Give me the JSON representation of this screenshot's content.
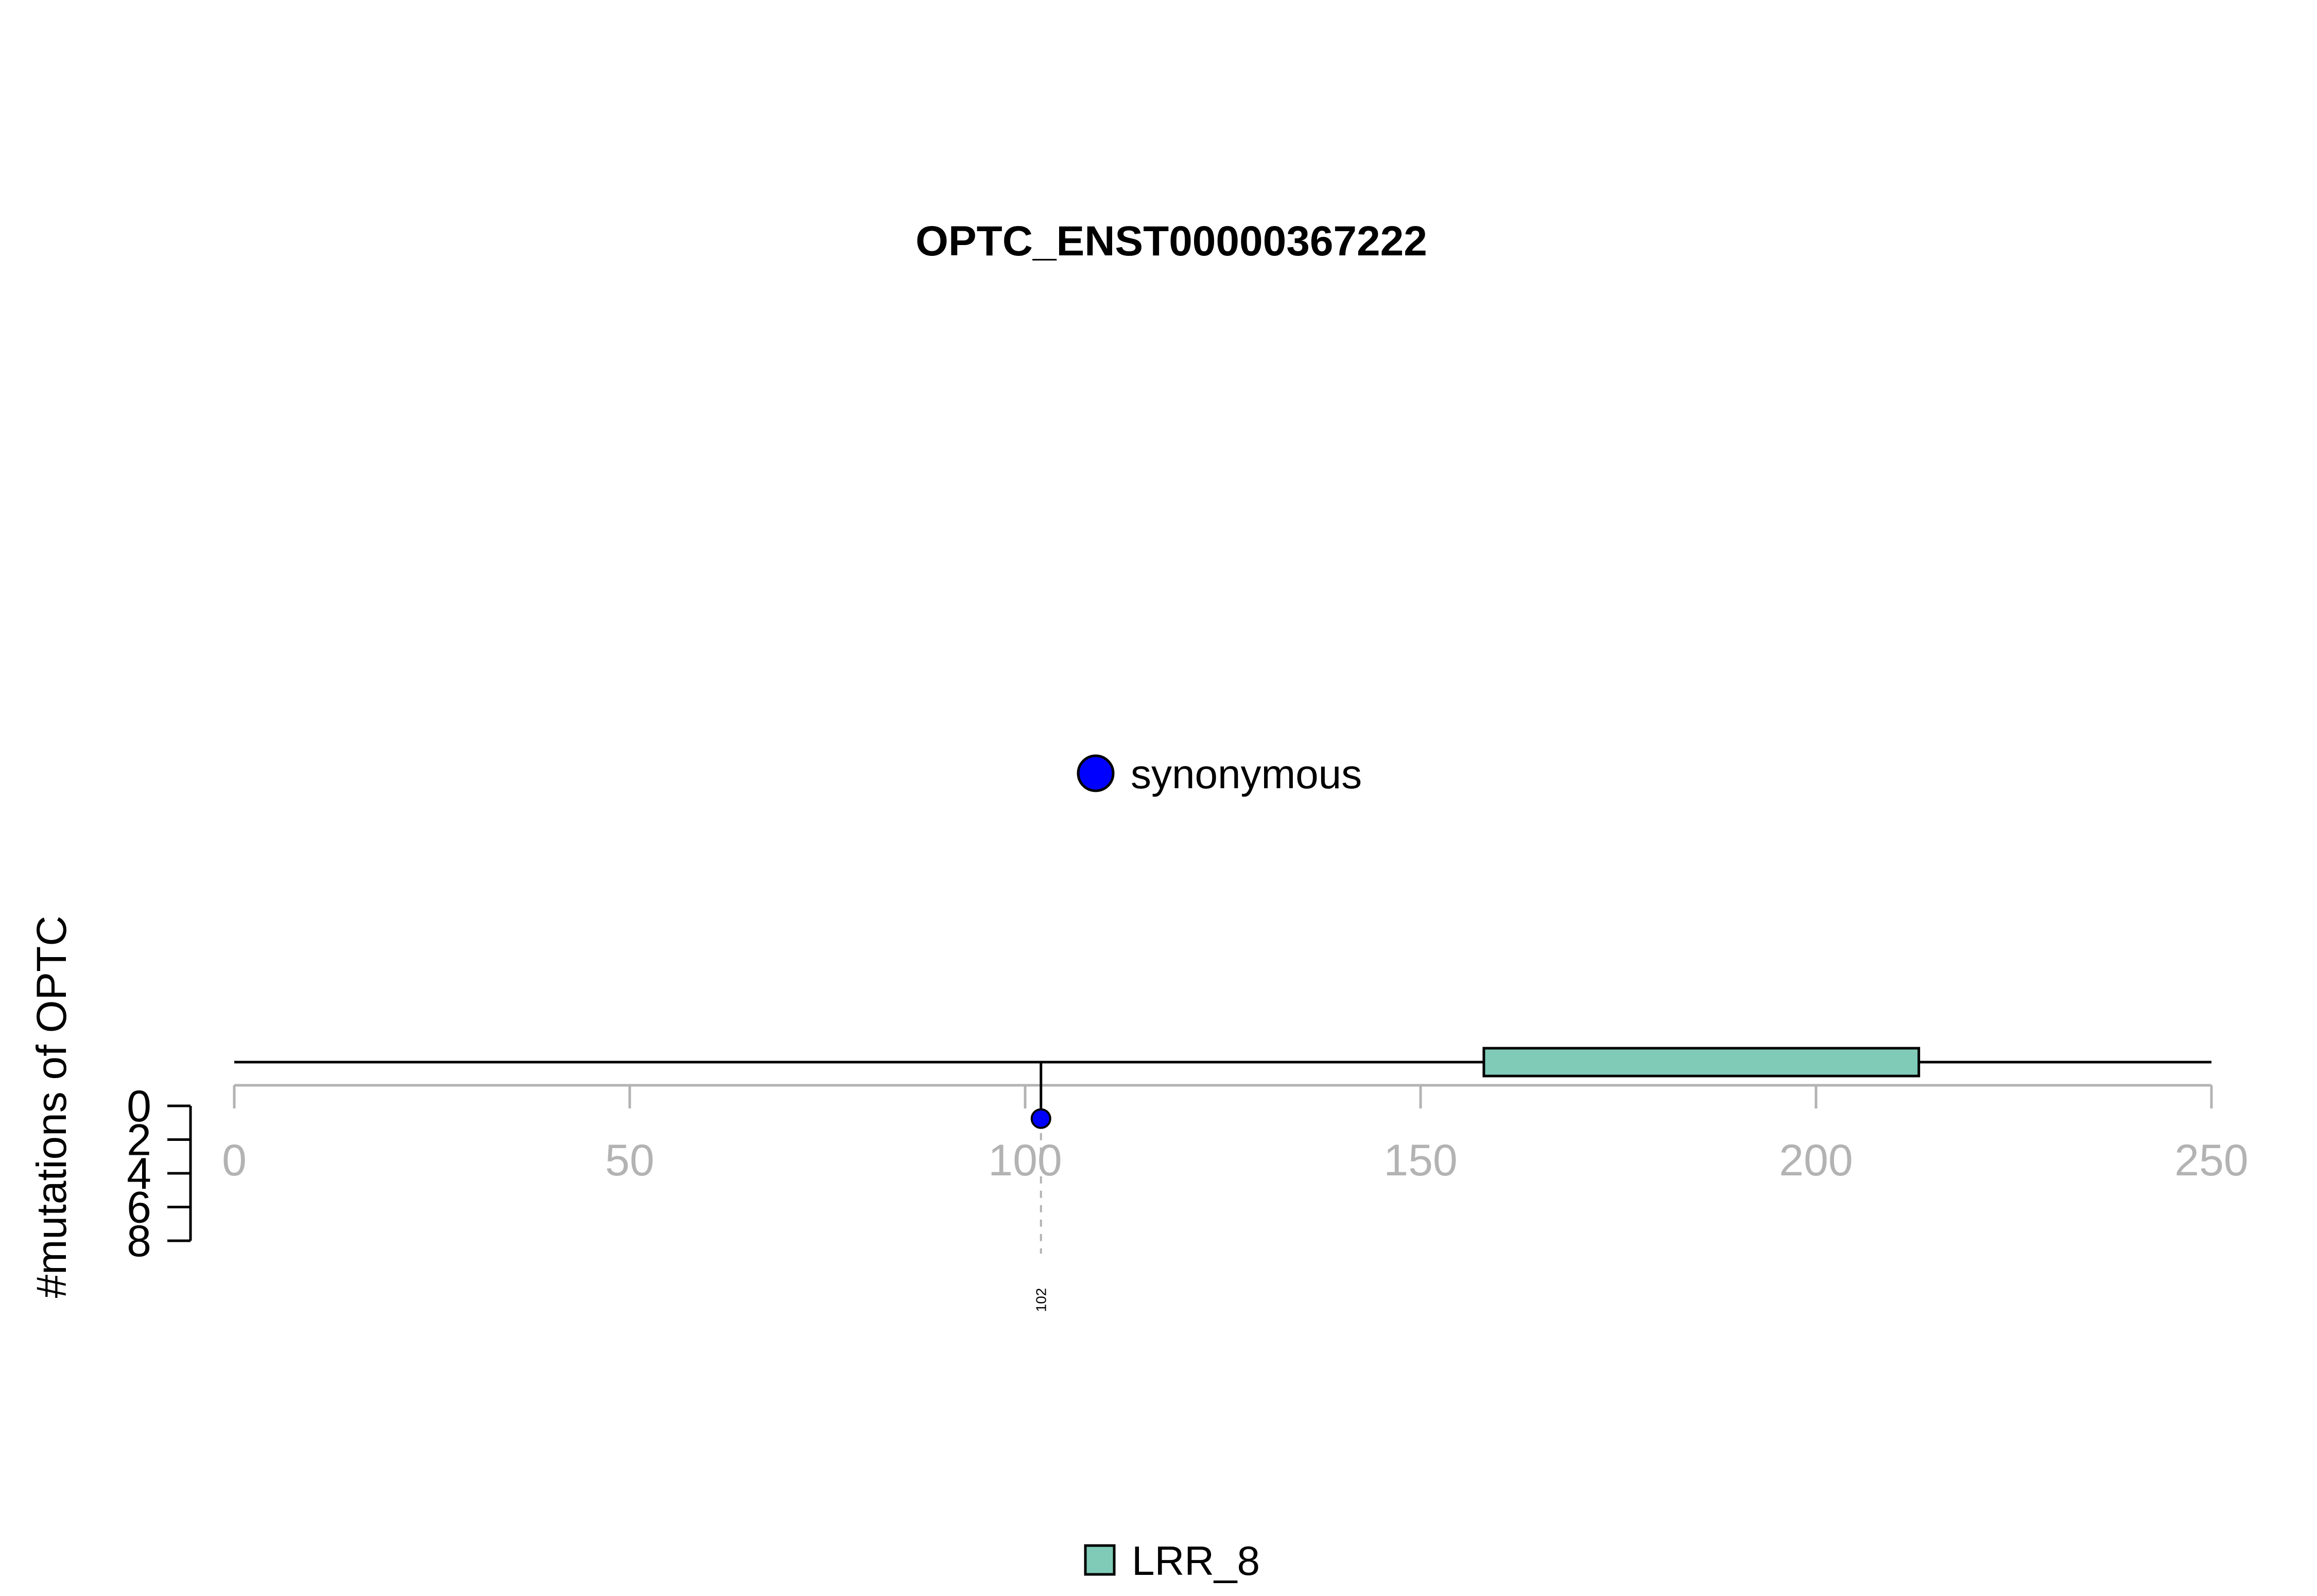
{
  "chart_data": {
    "type": "lollipop",
    "title": "OPTC_ENST00000367222",
    "xlabel": "",
    "ylabel": "#mutations of OPTC",
    "xlim": [
      0,
      250
    ],
    "x_ticks": [
      "0",
      "50",
      "100",
      "150",
      "200",
      "250"
    ],
    "ylim": [
      0,
      8
    ],
    "y_ticks": [
      "0",
      "2",
      "4",
      "6",
      "8"
    ],
    "mutations": [
      {
        "position": 102,
        "count": 1,
        "type": "synonymous",
        "label": "102",
        "color": "#0000ff"
      }
    ],
    "domains": [
      {
        "name": "LRR_8",
        "start": 158,
        "end": 213,
        "color": "#7fcbb8"
      }
    ],
    "legend_mutation_types": [
      {
        "name": "synonymous",
        "color": "#0000ff"
      }
    ],
    "legend_domains": [
      {
        "name": "LRR_8",
        "color": "#7fcbb8"
      }
    ],
    "grid": false
  }
}
